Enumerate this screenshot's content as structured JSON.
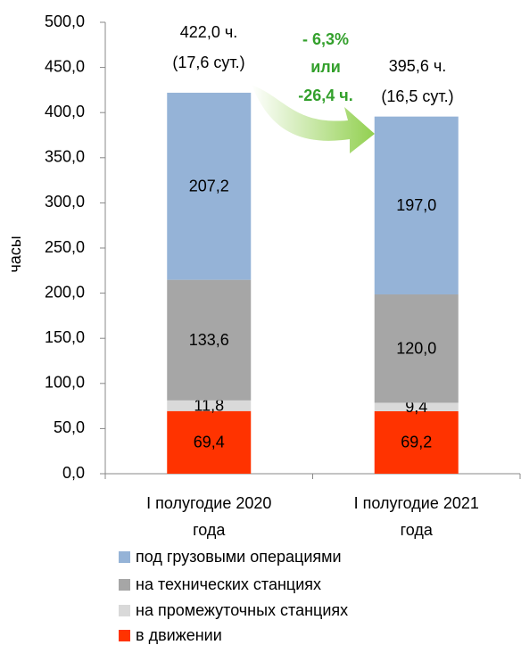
{
  "chart_data": {
    "type": "stacked_bar",
    "y_label": "часы",
    "categories": [
      "I полугодие 2020 года",
      "I полугодие 2021 года"
    ],
    "series": [
      {
        "name": "в движении",
        "color": "#ff3300",
        "values": [
          69.4,
          69.2
        ],
        "value_labels": [
          "69,4",
          "69,2"
        ]
      },
      {
        "name": "на промежуточных станциях",
        "color": "#d9d9d9",
        "values": [
          11.8,
          9.4
        ],
        "value_labels": [
          "11,8",
          "9,4"
        ]
      },
      {
        "name": "на технических станциях",
        "color": "#a6a6a6",
        "values": [
          133.6,
          120.0
        ],
        "value_labels": [
          "133,6",
          "120,0"
        ]
      },
      {
        "name": "под грузовыми операциями",
        "color": "#95b3d7",
        "values": [
          207.2,
          197.0
        ],
        "value_labels": [
          "207,2",
          "197,0"
        ]
      }
    ],
    "ylim": [
      0,
      500
    ],
    "yticks": [
      {
        "value": 0,
        "label": "0,0"
      },
      {
        "value": 50,
        "label": "50,0"
      },
      {
        "value": 100,
        "label": "100,0"
      },
      {
        "value": 150,
        "label": "150,0"
      },
      {
        "value": 200,
        "label": "200,0"
      },
      {
        "value": 250,
        "label": "250,0"
      },
      {
        "value": 300,
        "label": "300,0"
      },
      {
        "value": 350,
        "label": "350,0"
      },
      {
        "value": 400,
        "label": "400,0"
      },
      {
        "value": 450,
        "label": "450,0"
      },
      {
        "value": 500,
        "label": "500,0"
      }
    ],
    "annotations": {
      "total_2020": [
        "422,0 ч.",
        "(17,6 сут.)"
      ],
      "total_2021": [
        "395,6 ч.",
        "(16,5 сут.)"
      ],
      "change": [
        "- 6,3%",
        "или",
        "-26,4 ч."
      ]
    }
  }
}
